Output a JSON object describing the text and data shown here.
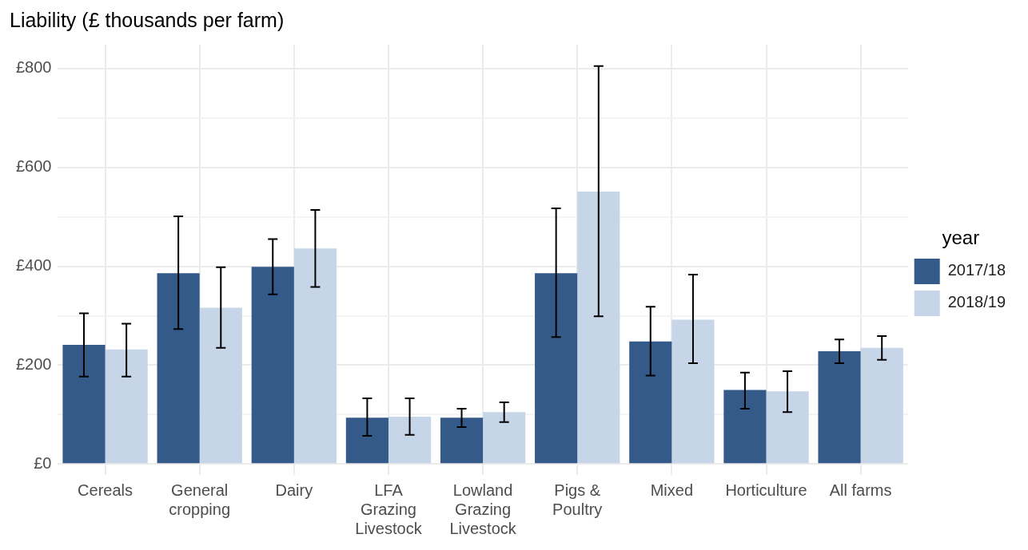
{
  "chart_data": {
    "type": "bar",
    "title": "Liability (£ thousands per farm)",
    "categories": [
      "Cereals",
      "General\ncropping",
      "Dairy",
      "LFA\nGrazing\nLivestock",
      "Lowland\nGrazing\nLivestock",
      "Pigs &\nPoultry",
      "Mixed",
      "Horticulture",
      "All farms"
    ],
    "series": [
      {
        "name": "2017/18",
        "color": "#345a89",
        "values": [
          241,
          386,
          399,
          94,
          94,
          386,
          248,
          150,
          228
        ],
        "errors": [
          [
            177,
            305
          ],
          [
            273,
            501
          ],
          [
            343,
            455
          ],
          [
            57,
            133
          ],
          [
            75,
            112
          ],
          [
            257,
            517
          ],
          [
            179,
            318
          ],
          [
            112,
            185
          ],
          [
            204,
            252
          ]
        ]
      },
      {
        "name": "2018/19",
        "color": "#c6d5e8",
        "values": [
          232,
          316,
          436,
          96,
          105,
          551,
          292,
          147,
          235
        ],
        "errors": [
          [
            177,
            284
          ],
          [
            235,
            398
          ],
          [
            358,
            514
          ],
          [
            59,
            133
          ],
          [
            85,
            125
          ],
          [
            299,
            805
          ],
          [
            204,
            383
          ],
          [
            105,
            188
          ],
          [
            211,
            259
          ]
        ]
      }
    ],
    "ylim": [
      -22,
      848
    ],
    "yticks": [
      {
        "value": 0,
        "label": "£0"
      },
      {
        "value": 100,
        "label": null
      },
      {
        "value": 200,
        "label": "£200"
      },
      {
        "value": 300,
        "label": null
      },
      {
        "value": 400,
        "label": "£400"
      },
      {
        "value": 500,
        "label": null
      },
      {
        "value": 600,
        "label": "£600"
      },
      {
        "value": 700,
        "label": null
      },
      {
        "value": 800,
        "label": "£800"
      }
    ],
    "legend_title": "year",
    "legend": "right",
    "grid": true
  }
}
